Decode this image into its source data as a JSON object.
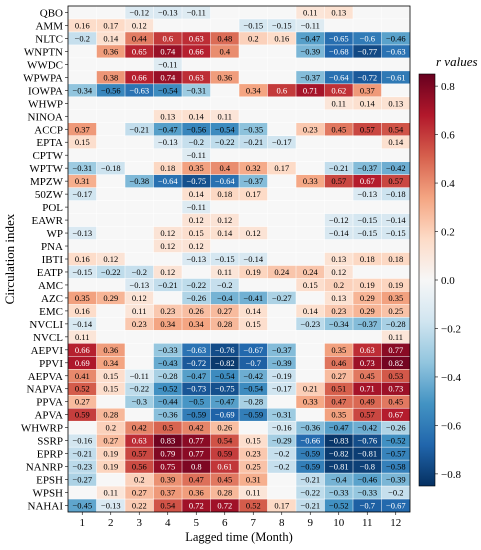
{
  "chart_data": {
    "type": "heatmap",
    "xlabel": "Lagged time (Month)",
    "ylabel": "Circulation index",
    "colorbar_label": "r values",
    "colorbar_ticks": [
      "0.8",
      "0.6",
      "0.4",
      "0.2",
      "0.0",
      "−0.2",
      "−0.4",
      "−0.6",
      "−0.8"
    ],
    "colorbar_range": [
      -0.85,
      0.85
    ],
    "x": [
      "1",
      "2",
      "3",
      "4",
      "5",
      "6",
      "7",
      "8",
      "9",
      "10",
      "11",
      "12"
    ],
    "rows": [
      {
        "name": "QBO",
        "values": [
          null,
          null,
          -0.12,
          -0.13,
          -0.11,
          null,
          null,
          null,
          0.11,
          0.13,
          null,
          null
        ]
      },
      {
        "name": "AMM",
        "values": [
          0.16,
          0.17,
          0.12,
          null,
          null,
          null,
          -0.15,
          -0.15,
          -0.11,
          null,
          null,
          null
        ]
      },
      {
        "name": "NLTC",
        "values": [
          -0.2,
          0.14,
          0.44,
          0.6,
          0.63,
          0.48,
          0.2,
          0.16,
          -0.47,
          -0.65,
          -0.6,
          -0.46
        ]
      },
      {
        "name": "WNPTN",
        "values": [
          null,
          0.36,
          0.65,
          0.74,
          0.66,
          0.4,
          null,
          null,
          -0.39,
          -0.68,
          -0.77,
          -0.63
        ]
      },
      {
        "name": "WWDC",
        "values": [
          null,
          null,
          null,
          -0.11,
          null,
          null,
          null,
          null,
          null,
          null,
          null,
          null
        ]
      },
      {
        "name": "WPWPA",
        "values": [
          null,
          0.38,
          0.66,
          0.74,
          0.63,
          0.36,
          null,
          null,
          -0.37,
          -0.64,
          -0.72,
          -0.61
        ]
      },
      {
        "name": "IOWPA",
        "values": [
          -0.34,
          -0.56,
          -0.63,
          -0.54,
          -0.31,
          null,
          0.34,
          0.6,
          0.71,
          0.62,
          0.37,
          null
        ]
      },
      {
        "name": "WHWP",
        "values": [
          null,
          null,
          null,
          null,
          null,
          null,
          null,
          null,
          null,
          0.11,
          0.14,
          0.13
        ]
      },
      {
        "name": "NINOA",
        "values": [
          null,
          null,
          null,
          0.13,
          0.14,
          0.11,
          null,
          null,
          null,
          null,
          null,
          null
        ]
      },
      {
        "name": "ACCP",
        "values": [
          0.37,
          null,
          -0.21,
          -0.47,
          -0.56,
          -0.54,
          -0.35,
          null,
          0.23,
          0.45,
          0.57,
          0.54
        ]
      },
      {
        "name": "EPTA",
        "values": [
          0.15,
          null,
          null,
          -0.13,
          -0.2,
          -0.22,
          -0.21,
          -0.17,
          null,
          null,
          null,
          0.14
        ]
      },
      {
        "name": "CPTW",
        "values": [
          null,
          null,
          null,
          null,
          -0.11,
          null,
          null,
          null,
          null,
          null,
          null,
          null
        ]
      },
      {
        "name": "WPTW",
        "values": [
          -0.31,
          -0.18,
          null,
          0.18,
          0.35,
          0.4,
          0.32,
          0.17,
          null,
          -0.21,
          -0.37,
          -0.42
        ]
      },
      {
        "name": "MPZW",
        "values": [
          0.31,
          null,
          -0.38,
          -0.64,
          -0.75,
          -0.64,
          -0.37,
          null,
          0.33,
          0.57,
          0.67,
          0.57
        ]
      },
      {
        "name": "50ZW",
        "values": [
          -0.17,
          null,
          null,
          null,
          0.14,
          0.18,
          0.17,
          null,
          null,
          null,
          -0.13,
          -0.18
        ]
      },
      {
        "name": "POL",
        "values": [
          null,
          null,
          null,
          null,
          -0.11,
          null,
          null,
          null,
          null,
          null,
          null,
          null
        ]
      },
      {
        "name": "EAWR",
        "values": [
          null,
          null,
          null,
          null,
          0.12,
          0.12,
          null,
          null,
          null,
          -0.12,
          -0.15,
          -0.14
        ]
      },
      {
        "name": "WP",
        "values": [
          -0.13,
          null,
          null,
          0.12,
          0.15,
          0.14,
          0.12,
          null,
          null,
          -0.14,
          -0.15,
          -0.15
        ]
      },
      {
        "name": "PNA",
        "values": [
          null,
          null,
          null,
          0.12,
          0.12,
          null,
          null,
          null,
          null,
          null,
          null,
          null
        ]
      },
      {
        "name": "IBTI",
        "values": [
          0.16,
          0.12,
          null,
          null,
          -0.13,
          -0.15,
          -0.14,
          null,
          null,
          0.13,
          0.18,
          0.18
        ]
      },
      {
        "name": "EATP",
        "values": [
          -0.15,
          -0.22,
          -0.2,
          0.12,
          null,
          0.11,
          0.19,
          0.24,
          0.24,
          0.12,
          null,
          null
        ]
      },
      {
        "name": "AMC",
        "values": [
          null,
          null,
          -0.13,
          -0.21,
          -0.22,
          -0.2,
          null,
          null,
          0.15,
          0.2,
          0.19,
          0.19
        ]
      },
      {
        "name": "AZC",
        "values": [
          0.35,
          0.29,
          0.12,
          null,
          -0.26,
          -0.4,
          -0.41,
          -0.27,
          null,
          0.13,
          0.29,
          0.35
        ]
      },
      {
        "name": "EMC",
        "values": [
          0.16,
          null,
          0.11,
          0.23,
          0.26,
          0.27,
          0.14,
          null,
          0.14,
          0.23,
          0.29,
          0.25
        ]
      },
      {
        "name": "NVCLI",
        "values": [
          -0.14,
          null,
          0.23,
          0.34,
          0.34,
          0.28,
          0.15,
          null,
          -0.23,
          -0.34,
          -0.37,
          -0.28
        ]
      },
      {
        "name": "NVCL",
        "values": [
          0.11,
          null,
          null,
          null,
          null,
          null,
          null,
          null,
          null,
          null,
          null,
          0.11
        ]
      },
      {
        "name": "AEPVI",
        "values": [
          0.66,
          0.36,
          null,
          -0.33,
          -0.63,
          -0.76,
          -0.67,
          -0.37,
          null,
          0.35,
          0.63,
          0.77
        ]
      },
      {
        "name": "PPVI",
        "values": [
          0.69,
          0.34,
          null,
          -0.43,
          -0.72,
          -0.82,
          -0.7,
          -0.39,
          null,
          0.46,
          0.73,
          0.82
        ]
      },
      {
        "name": "AEPVA",
        "values": [
          0.41,
          0.15,
          -0.11,
          -0.28,
          -0.47,
          -0.54,
          -0.42,
          -0.19,
          null,
          0.27,
          0.45,
          0.53
        ]
      },
      {
        "name": "NAPVA",
        "values": [
          0.52,
          0.15,
          -0.22,
          -0.52,
          -0.73,
          -0.75,
          -0.54,
          -0.17,
          0.21,
          0.51,
          0.71,
          0.73
        ]
      },
      {
        "name": "PPVA",
        "values": [
          0.27,
          null,
          -0.3,
          -0.44,
          -0.5,
          -0.47,
          -0.28,
          null,
          0.33,
          0.47,
          0.49,
          0.45
        ]
      },
      {
        "name": "APVA",
        "values": [
          0.59,
          0.28,
          null,
          -0.36,
          -0.59,
          -0.69,
          -0.59,
          -0.31,
          null,
          0.35,
          0.57,
          0.67
        ]
      },
      {
        "name": "WHWRP",
        "values": [
          null,
          0.2,
          0.42,
          0.5,
          0.42,
          0.26,
          null,
          -0.16,
          -0.36,
          -0.47,
          -0.42,
          -0.26
        ]
      },
      {
        "name": "SSRP",
        "values": [
          -0.16,
          0.27,
          0.63,
          0.83,
          0.77,
          0.54,
          0.15,
          -0.29,
          -0.66,
          -0.83,
          -0.76,
          -0.52
        ]
      },
      {
        "name": "EPRP",
        "values": [
          -0.21,
          0.19,
          0.57,
          0.79,
          0.77,
          0.59,
          0.23,
          -0.2,
          -0.59,
          -0.82,
          -0.81,
          -0.57
        ]
      },
      {
        "name": "NANRP",
        "values": [
          -0.23,
          0.19,
          0.56,
          0.75,
          0.8,
          0.61,
          0.25,
          -0.2,
          -0.59,
          -0.81,
          -0.8,
          -0.58
        ]
      },
      {
        "name": "EPSH",
        "values": [
          -0.27,
          null,
          0.2,
          0.39,
          0.47,
          0.45,
          0.31,
          null,
          -0.21,
          -0.4,
          -0.46,
          -0.39
        ]
      },
      {
        "name": "WPSH",
        "values": [
          null,
          0.11,
          0.27,
          0.37,
          0.36,
          0.28,
          0.11,
          null,
          -0.22,
          -0.33,
          -0.33,
          -0.2
        ]
      },
      {
        "name": "NAHAI",
        "values": [
          -0.45,
          -0.13,
          0.22,
          0.54,
          0.72,
          0.72,
          0.52,
          0.17,
          -0.21,
          -0.52,
          -0.7,
          -0.67
        ]
      }
    ]
  }
}
